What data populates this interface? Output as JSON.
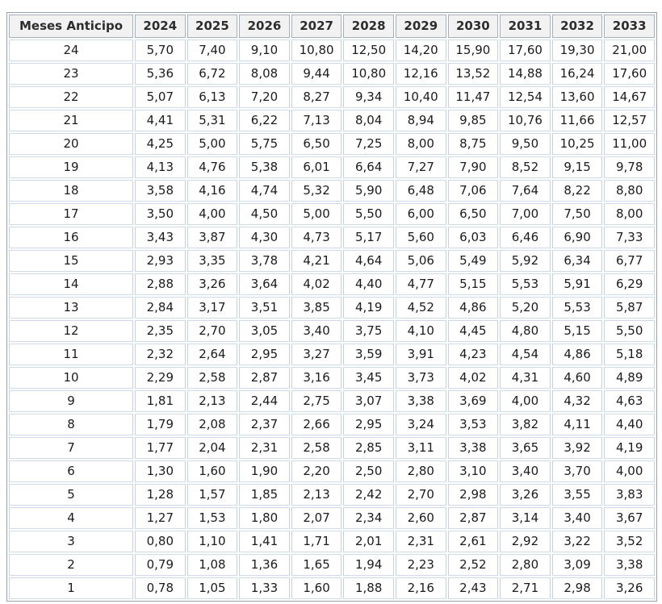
{
  "page": {
    "background": "#ffffff",
    "table_border_color": "#96a3af",
    "cell_border_color": "#c2d2e0",
    "header_background": "#f2f2f2",
    "text_color": "#1b1b1b"
  },
  "table": {
    "columns": [
      "Meses Anticipo",
      "2024",
      "2025",
      "2026",
      "2027",
      "2028",
      "2029",
      "2030",
      "2031",
      "2032",
      "2033"
    ],
    "rows": [
      [
        "24",
        "5,70",
        "7,40",
        "9,10",
        "10,80",
        "12,50",
        "14,20",
        "15,90",
        "17,60",
        "19,30",
        "21,00"
      ],
      [
        "23",
        "5,36",
        "6,72",
        "8,08",
        "9,44",
        "10,80",
        "12,16",
        "13,52",
        "14,88",
        "16,24",
        "17,60"
      ],
      [
        "22",
        "5,07",
        "6,13",
        "7,20",
        "8,27",
        "9,34",
        "10,40",
        "11,47",
        "12,54",
        "13,60",
        "14,67"
      ],
      [
        "21",
        "4,41",
        "5,31",
        "6,22",
        "7,13",
        "8,04",
        "8,94",
        "9,85",
        "10,76",
        "11,66",
        "12,57"
      ],
      [
        "20",
        "4,25",
        "5,00",
        "5,75",
        "6,50",
        "7,25",
        "8,00",
        "8,75",
        "9,50",
        "10,25",
        "11,00"
      ],
      [
        "19",
        "4,13",
        "4,76",
        "5,38",
        "6,01",
        "6,64",
        "7,27",
        "7,90",
        "8,52",
        "9,15",
        "9,78"
      ],
      [
        "18",
        "3,58",
        "4,16",
        "4,74",
        "5,32",
        "5,90",
        "6,48",
        "7,06",
        "7,64",
        "8,22",
        "8,80"
      ],
      [
        "17",
        "3,50",
        "4,00",
        "4,50",
        "5,00",
        "5,50",
        "6,00",
        "6,50",
        "7,00",
        "7,50",
        "8,00"
      ],
      [
        "16",
        "3,43",
        "3,87",
        "4,30",
        "4,73",
        "5,17",
        "5,60",
        "6,03",
        "6,46",
        "6,90",
        "7,33"
      ],
      [
        "15",
        "2,93",
        "3,35",
        "3,78",
        "4,21",
        "4,64",
        "5,06",
        "5,49",
        "5,92",
        "6,34",
        "6,77"
      ],
      [
        "14",
        "2,88",
        "3,26",
        "3,64",
        "4,02",
        "4,40",
        "4,77",
        "5,15",
        "5,53",
        "5,91",
        "6,29"
      ],
      [
        "13",
        "2,84",
        "3,17",
        "3,51",
        "3,85",
        "4,19",
        "4,52",
        "4,86",
        "5,20",
        "5,53",
        "5,87"
      ],
      [
        "12",
        "2,35",
        "2,70",
        "3,05",
        "3,40",
        "3,75",
        "4,10",
        "4,45",
        "4,80",
        "5,15",
        "5,50"
      ],
      [
        "11",
        "2,32",
        "2,64",
        "2,95",
        "3,27",
        "3,59",
        "3,91",
        "4,23",
        "4,54",
        "4,86",
        "5,18"
      ],
      [
        "10",
        "2,29",
        "2,58",
        "2,87",
        "3,16",
        "3,45",
        "3,73",
        "4,02",
        "4,31",
        "4,60",
        "4,89"
      ],
      [
        "9",
        "1,81",
        "2,13",
        "2,44",
        "2,75",
        "3,07",
        "3,38",
        "3,69",
        "4,00",
        "4,32",
        "4,63"
      ],
      [
        "8",
        "1,79",
        "2,08",
        "2,37",
        "2,66",
        "2,95",
        "3,24",
        "3,53",
        "3,82",
        "4,11",
        "4,40"
      ],
      [
        "7",
        "1,77",
        "2,04",
        "2,31",
        "2,58",
        "2,85",
        "3,11",
        "3,38",
        "3,65",
        "3,92",
        "4,19"
      ],
      [
        "6",
        "1,30",
        "1,60",
        "1,90",
        "2,20",
        "2,50",
        "2,80",
        "3,10",
        "3,40",
        "3,70",
        "4,00"
      ],
      [
        "5",
        "1,28",
        "1,57",
        "1,85",
        "2,13",
        "2,42",
        "2,70",
        "2,98",
        "3,26",
        "3,55",
        "3,83"
      ],
      [
        "4",
        "1,27",
        "1,53",
        "1,80",
        "2,07",
        "2,34",
        "2,60",
        "2,87",
        "3,14",
        "3,40",
        "3,67"
      ],
      [
        "3",
        "0,80",
        "1,10",
        "1,41",
        "1,71",
        "2,01",
        "2,31",
        "2,61",
        "2,92",
        "3,22",
        "3,52"
      ],
      [
        "2",
        "0,79",
        "1,08",
        "1,36",
        "1,65",
        "1,94",
        "2,23",
        "2,52",
        "2,80",
        "3,09",
        "3,38"
      ],
      [
        "1",
        "0,78",
        "1,05",
        "1,33",
        "1,60",
        "1,88",
        "2,16",
        "2,43",
        "2,71",
        "2,98",
        "3,26"
      ]
    ]
  },
  "chart_data": {
    "type": "table",
    "title": "Meses Anticipo",
    "xlabel": "Meses Anticipo",
    "ylabel": "",
    "decimal_separator": ",",
    "categories": [
      24,
      23,
      22,
      21,
      20,
      19,
      18,
      17,
      16,
      15,
      14,
      13,
      12,
      11,
      10,
      9,
      8,
      7,
      6,
      5,
      4,
      3,
      2,
      1
    ],
    "series": [
      {
        "name": "2024",
        "values": [
          5.7,
          5.36,
          5.07,
          4.41,
          4.25,
          4.13,
          3.58,
          3.5,
          3.43,
          2.93,
          2.88,
          2.84,
          2.35,
          2.32,
          2.29,
          1.81,
          1.79,
          1.77,
          1.3,
          1.28,
          1.27,
          0.8,
          0.79,
          0.78
        ]
      },
      {
        "name": "2025",
        "values": [
          7.4,
          6.72,
          6.13,
          5.31,
          5.0,
          4.76,
          4.16,
          4.0,
          3.87,
          3.35,
          3.26,
          3.17,
          2.7,
          2.64,
          2.58,
          2.13,
          2.08,
          2.04,
          1.6,
          1.57,
          1.53,
          1.1,
          1.08,
          1.05
        ]
      },
      {
        "name": "2026",
        "values": [
          9.1,
          8.08,
          7.2,
          6.22,
          5.75,
          5.38,
          4.74,
          4.5,
          4.3,
          3.78,
          3.64,
          3.51,
          3.05,
          2.95,
          2.87,
          2.44,
          2.37,
          2.31,
          1.9,
          1.85,
          1.8,
          1.41,
          1.36,
          1.33
        ]
      },
      {
        "name": "2027",
        "values": [
          10.8,
          9.44,
          8.27,
          7.13,
          6.5,
          6.01,
          5.32,
          5.0,
          4.73,
          4.21,
          4.02,
          3.85,
          3.4,
          3.27,
          3.16,
          2.75,
          2.66,
          2.58,
          2.2,
          2.13,
          2.07,
          1.71,
          1.65,
          1.6
        ]
      },
      {
        "name": "2028",
        "values": [
          12.5,
          10.8,
          9.34,
          8.04,
          7.25,
          6.64,
          5.9,
          5.5,
          5.17,
          4.64,
          4.4,
          4.19,
          3.75,
          3.59,
          3.45,
          3.07,
          2.95,
          2.85,
          2.5,
          2.42,
          2.34,
          2.01,
          1.94,
          1.88
        ]
      },
      {
        "name": "2029",
        "values": [
          14.2,
          12.16,
          10.4,
          8.94,
          8.0,
          7.27,
          6.48,
          6.0,
          5.6,
          5.06,
          4.77,
          4.52,
          4.1,
          3.91,
          3.73,
          3.38,
          3.24,
          3.11,
          2.8,
          2.7,
          2.6,
          2.31,
          2.23,
          2.16
        ]
      },
      {
        "name": "2030",
        "values": [
          15.9,
          13.52,
          11.47,
          9.85,
          8.75,
          7.9,
          7.06,
          6.5,
          6.03,
          5.49,
          5.15,
          4.86,
          4.45,
          4.23,
          4.02,
          3.69,
          3.53,
          3.38,
          3.1,
          2.98,
          2.87,
          2.61,
          2.52,
          2.43
        ]
      },
      {
        "name": "2031",
        "values": [
          17.6,
          14.88,
          12.54,
          10.76,
          9.5,
          8.52,
          7.64,
          7.0,
          6.46,
          5.92,
          5.53,
          5.2,
          4.8,
          4.54,
          4.31,
          4.0,
          3.82,
          3.65,
          3.4,
          3.26,
          3.14,
          2.92,
          2.8,
          2.71
        ]
      },
      {
        "name": "2032",
        "values": [
          19.3,
          16.24,
          13.6,
          11.66,
          10.25,
          9.15,
          8.22,
          7.5,
          6.9,
          6.34,
          5.91,
          5.53,
          5.15,
          4.86,
          4.6,
          4.32,
          4.11,
          3.92,
          3.7,
          3.55,
          3.4,
          3.22,
          3.09,
          2.98
        ]
      },
      {
        "name": "2033",
        "values": [
          21.0,
          17.6,
          14.67,
          12.57,
          11.0,
          9.78,
          8.8,
          8.0,
          7.33,
          6.77,
          6.29,
          5.87,
          5.5,
          5.18,
          4.89,
          4.63,
          4.4,
          4.19,
          4.0,
          3.83,
          3.67,
          3.52,
          3.38,
          3.26
        ]
      }
    ],
    "legend": false,
    "grid": true,
    "notes": "Data table of percentage-style values per 'Meses Anticipo' (24 down to 1) across years 2024-2033; comma used as decimal separator."
  }
}
